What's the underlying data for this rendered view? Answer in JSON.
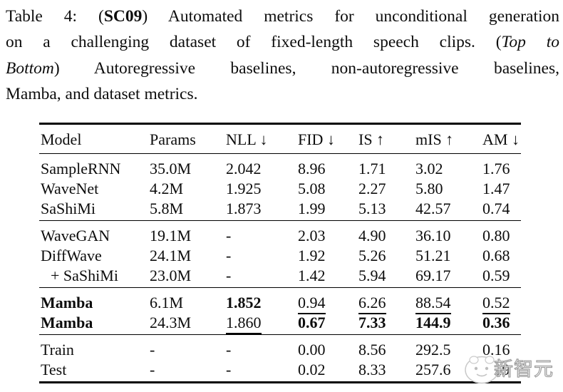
{
  "caption": {
    "lines": [
      {
        "justify": true,
        "segments": [
          {
            "text": "Table 4: ("
          },
          {
            "text": "SC09",
            "bold": true
          },
          {
            "text": ") Automated metrics for unconditional generation"
          }
        ]
      },
      {
        "justify": true,
        "segments": [
          {
            "text": "on a challenging dataset of fixed-length speech clips.  ("
          },
          {
            "text": "Top to",
            "italic": true
          }
        ]
      },
      {
        "justify": true,
        "segments": [
          {
            "text": "Bottom",
            "italic": true
          },
          {
            "text": ") Autoregressive baselines, non-autoregressive baselines,"
          }
        ]
      },
      {
        "justify": false,
        "segments": [
          {
            "text": "Mamba, and dataset metrics."
          }
        ]
      }
    ]
  },
  "table": {
    "columns": [
      {
        "key": "model",
        "label": "Model"
      },
      {
        "key": "params",
        "label": "Params"
      },
      {
        "key": "nll",
        "label": "NLL ↓"
      },
      {
        "key": "fid",
        "label": "FID ↓"
      },
      {
        "key": "is",
        "label": "IS ↑"
      },
      {
        "key": "mis",
        "label": "mIS ↑"
      },
      {
        "key": "am",
        "label": "AM ↓"
      }
    ],
    "groups": [
      {
        "name": "autoregressive-baselines",
        "rows": [
          {
            "cells": [
              {
                "text": "SampleRNN"
              },
              {
                "text": "35.0M"
              },
              {
                "text": "2.042"
              },
              {
                "text": "8.96"
              },
              {
                "text": "1.71"
              },
              {
                "text": "3.02"
              },
              {
                "text": "1.76"
              }
            ]
          },
          {
            "cells": [
              {
                "text": "WaveNet"
              },
              {
                "text": "4.2M"
              },
              {
                "text": "1.925"
              },
              {
                "text": "5.08"
              },
              {
                "text": "2.27"
              },
              {
                "text": "5.80"
              },
              {
                "text": "1.47"
              }
            ]
          },
          {
            "cells": [
              {
                "text": "SaShiMi"
              },
              {
                "text": "5.8M"
              },
              {
                "text": "1.873"
              },
              {
                "text": "1.99"
              },
              {
                "text": "5.13"
              },
              {
                "text": "42.57"
              },
              {
                "text": "0.74"
              }
            ]
          }
        ]
      },
      {
        "name": "non-autoregressive-baselines",
        "rows": [
          {
            "cells": [
              {
                "text": "WaveGAN"
              },
              {
                "text": "19.1M"
              },
              {
                "text": "-"
              },
              {
                "text": "2.03"
              },
              {
                "text": "4.90"
              },
              {
                "text": "36.10"
              },
              {
                "text": "0.80"
              }
            ]
          },
          {
            "cells": [
              {
                "text": "DiffWave"
              },
              {
                "text": "24.1M"
              },
              {
                "text": "-"
              },
              {
                "text": "1.92"
              },
              {
                "text": "5.26"
              },
              {
                "text": "51.21"
              },
              {
                "text": "0.68"
              }
            ]
          },
          {
            "cells": [
              {
                "text": "+ SaShiMi",
                "indent": true
              },
              {
                "text": "23.0M"
              },
              {
                "text": "-"
              },
              {
                "text": "1.42"
              },
              {
                "text": "5.94"
              },
              {
                "text": "69.17"
              },
              {
                "text": "0.59"
              }
            ]
          }
        ]
      },
      {
        "name": "mamba",
        "rows": [
          {
            "cells": [
              {
                "text": "Mamba",
                "bold": true
              },
              {
                "text": "6.1M"
              },
              {
                "text": "1.852",
                "bold": true
              },
              {
                "text": "0.94",
                "underline": true
              },
              {
                "text": "6.26",
                "underline": true
              },
              {
                "text": "88.54",
                "underline": true
              },
              {
                "text": "0.52",
                "underline": true
              }
            ]
          },
          {
            "cells": [
              {
                "text": "Mamba",
                "bold": true
              },
              {
                "text": "24.3M"
              },
              {
                "text": "1.860",
                "underline": true
              },
              {
                "text": "0.67",
                "bold": true
              },
              {
                "text": "7.33",
                "bold": true
              },
              {
                "text": "144.9",
                "bold": true
              },
              {
                "text": "0.36",
                "bold": true
              }
            ]
          }
        ]
      },
      {
        "name": "dataset-metrics",
        "rows": [
          {
            "cells": [
              {
                "text": "Train"
              },
              {
                "text": "-"
              },
              {
                "text": "-"
              },
              {
                "text": "0.00"
              },
              {
                "text": "8.56"
              },
              {
                "text": "292.5"
              },
              {
                "text": "0.16"
              }
            ]
          },
          {
            "cells": [
              {
                "text": "Test"
              },
              {
                "text": "-"
              },
              {
                "text": "-"
              },
              {
                "text": "0.02"
              },
              {
                "text": "8.33"
              },
              {
                "text": "257.6"
              },
              {
                "text": "0.19"
              }
            ]
          }
        ]
      }
    ]
  },
  "watermark": {
    "text": "新智元",
    "logo": "mascot-face-icon"
  },
  "colors": {
    "text": "#0d0d0d",
    "rule": "#000000",
    "background": "#ffffff",
    "watermark_outline": "#9e9e9e"
  }
}
